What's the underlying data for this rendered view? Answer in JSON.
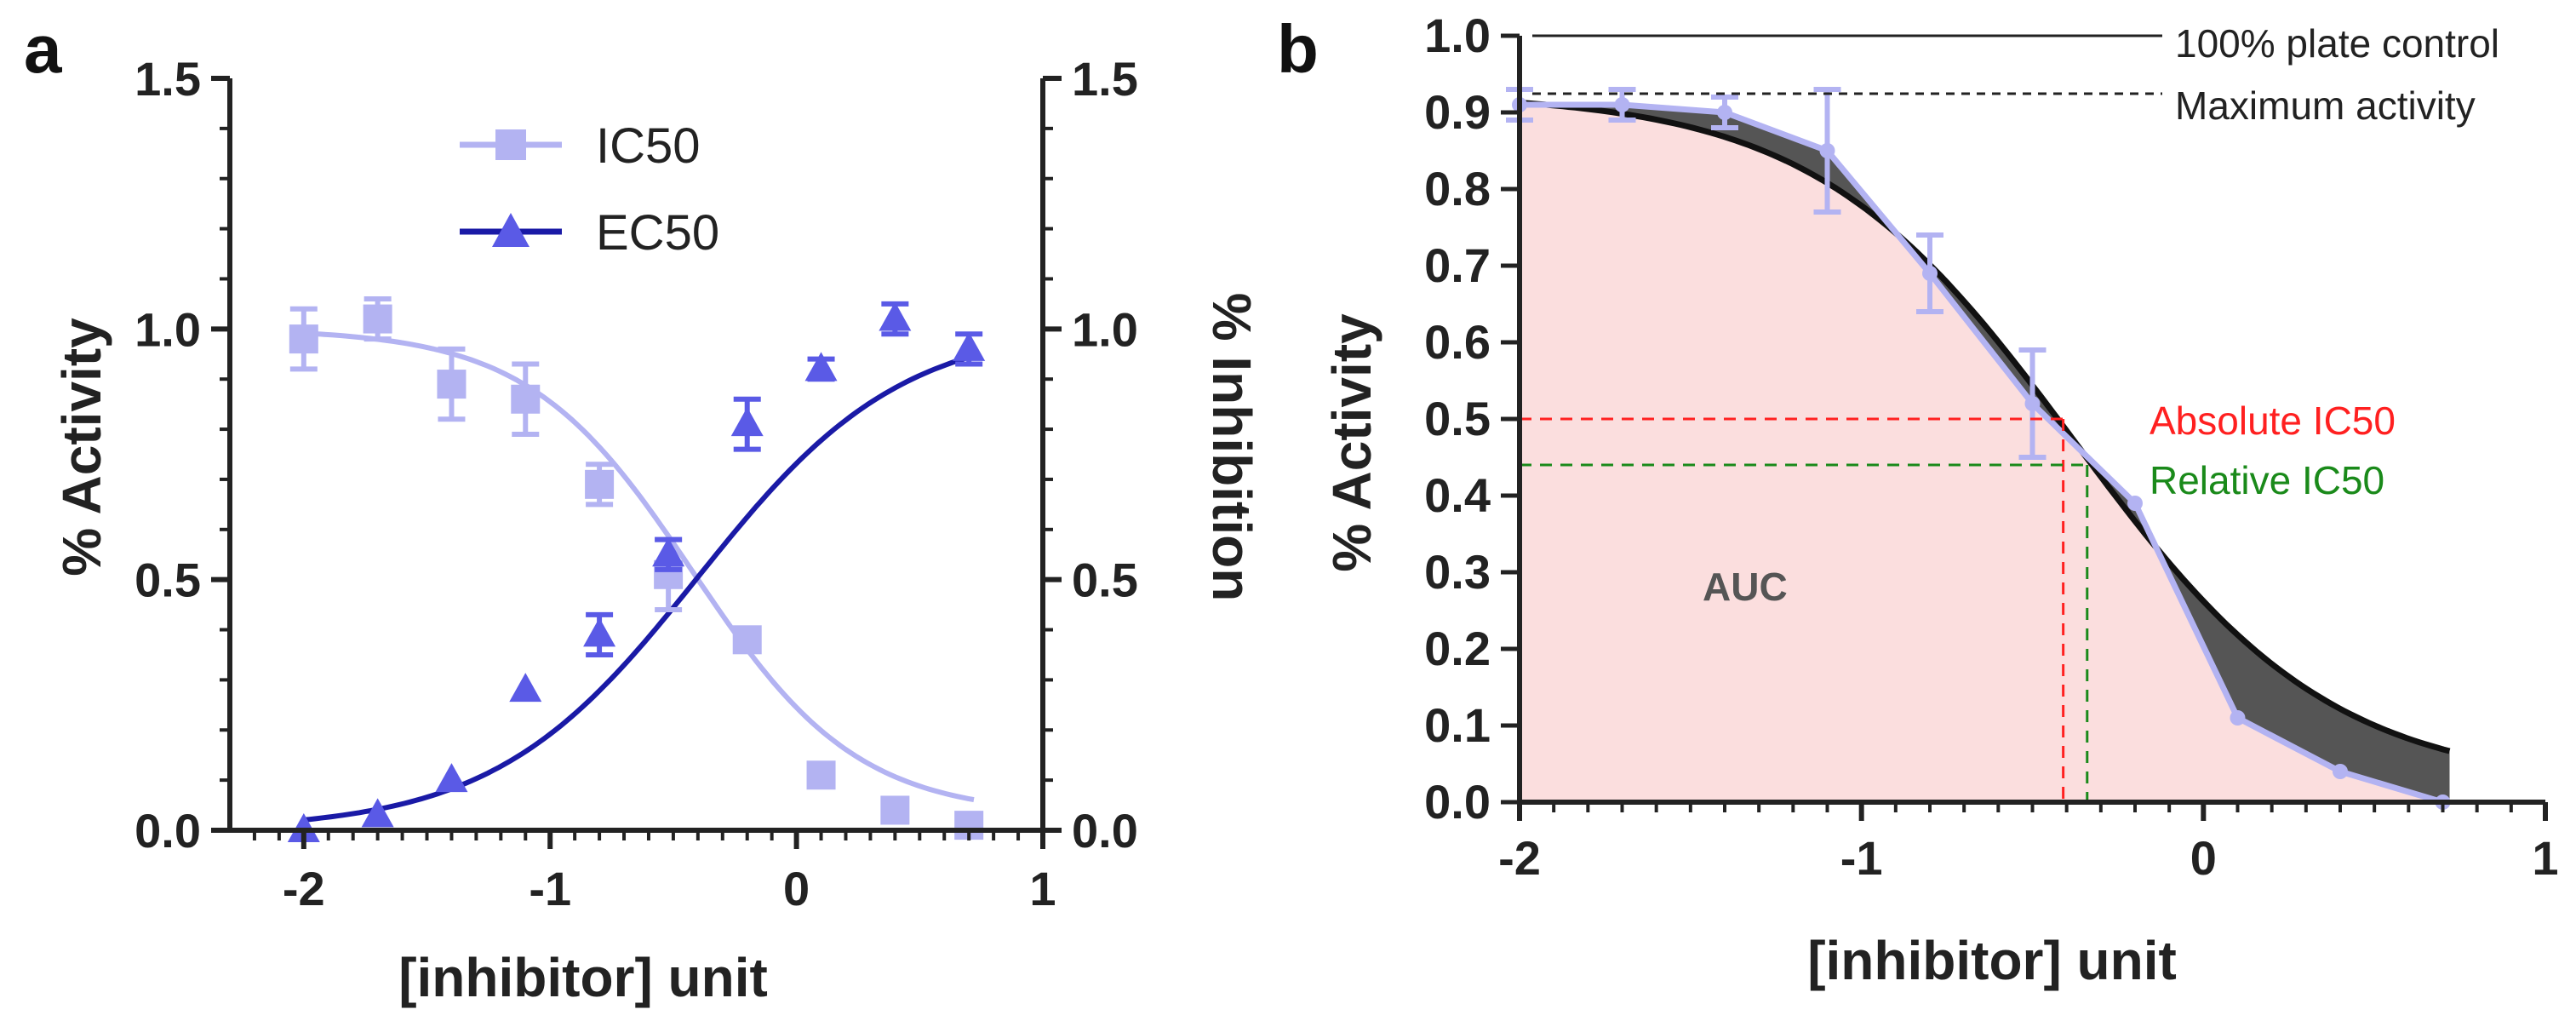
{
  "colors": {
    "ic50": "#b3b3f2",
    "ec50_marker": "#5a5ae6",
    "ec50_curve": "#1a1aa6",
    "auc_fill": "#fbdede",
    "diff_fill": "#555555",
    "absolute": "#ff2020",
    "relative": "#1a8a1a",
    "axis": "#222222"
  },
  "chart_data": [
    {
      "id": "a",
      "panel_label": "a",
      "type": "scatter",
      "xlabel": "[inhibitor] unit",
      "ylabel_left": "% Activity",
      "ylabel_right": "% Inhibition",
      "xlim": [
        -2.3,
        1
      ],
      "ylim": [
        0,
        1.5
      ],
      "xticks": [
        -2,
        -1,
        0,
        1
      ],
      "xtick_labels": [
        "-2",
        "-1",
        "0",
        "1"
      ],
      "yticks": [
        0,
        0.5,
        1,
        1.5
      ],
      "ytick_labels": [
        "0.0",
        "0.5",
        "1.0",
        "1.5"
      ],
      "legend": [
        "IC50",
        "EC50"
      ],
      "series": [
        {
          "name": "IC50",
          "marker": "square",
          "x": [
            -2.0,
            -1.7,
            -1.4,
            -1.1,
            -0.8,
            -0.52,
            -0.2,
            0.1,
            0.4,
            0.7
          ],
          "y": [
            0.98,
            1.02,
            0.89,
            0.86,
            0.69,
            0.51,
            0.38,
            0.11,
            0.04,
            0.01
          ],
          "err": [
            0.06,
            0.04,
            0.07,
            0.07,
            0.04,
            0.07,
            0.0,
            0.0,
            0.0,
            0.0
          ],
          "fit": {
            "top": 1.0,
            "bottom": 0.03,
            "logIC50": -0.42,
            "hill": 1.3
          }
        },
        {
          "name": "EC50",
          "marker": "triangle",
          "x": [
            -2.0,
            -1.7,
            -1.4,
            -1.1,
            -0.8,
            -0.52,
            -0.2,
            0.1,
            0.4,
            0.7
          ],
          "y": [
            0.0,
            0.03,
            0.1,
            0.28,
            0.39,
            0.55,
            0.81,
            0.92,
            1.02,
            0.96
          ],
          "err": [
            0.0,
            0.0,
            0.0,
            0.0,
            0.04,
            0.03,
            0.05,
            0.02,
            0.03,
            0.03
          ],
          "fit": {
            "top": 1.01,
            "bottom": 0.0,
            "logEC50": -0.4,
            "hill": 1.05
          }
        }
      ]
    },
    {
      "id": "b",
      "panel_label": "b",
      "type": "line",
      "xlabel": "[inhibitor] unit",
      "ylabel": "% Activity",
      "xlim": [
        -2,
        1
      ],
      "ylim": [
        0,
        1.0
      ],
      "xticks": [
        -2,
        -1,
        0,
        1
      ],
      "xtick_labels": [
        "-2",
        "-1",
        "0",
        "1"
      ],
      "yticks": [
        0,
        0.1,
        0.2,
        0.3,
        0.4,
        0.5,
        0.6,
        0.7,
        0.8,
        0.9,
        1.0
      ],
      "ytick_labels": [
        "0.0",
        "0.1",
        "0.2",
        "0.3",
        "0.4",
        "0.5",
        "0.6",
        "0.7",
        "0.8",
        "0.9",
        "1.0"
      ],
      "data": {
        "x": [
          -2.0,
          -1.7,
          -1.4,
          -1.1,
          -0.8,
          -0.5,
          -0.2,
          0.1,
          0.4,
          0.7
        ],
        "y": [
          0.91,
          0.91,
          0.9,
          0.85,
          0.69,
          0.52,
          0.39,
          0.11,
          0.04,
          0.0
        ],
        "err": [
          0.02,
          0.02,
          0.02,
          0.08,
          0.05,
          0.07,
          0.0,
          0.0,
          0.0,
          0.0
        ]
      },
      "fit": {
        "top": 0.925,
        "bottom": 0.02,
        "logIC50": -0.38,
        "hill": 1.15
      },
      "reference_lines": [
        {
          "label": "100% plate control",
          "y": 1.0,
          "style": "solid"
        },
        {
          "label": "Maximum activity",
          "y": 0.92,
          "style": "dashed"
        }
      ],
      "annotations": {
        "absolute_ic50": {
          "label": "Absolute IC50",
          "x": -0.41,
          "y": 0.5
        },
        "relative_ic50": {
          "label": "Relative IC50",
          "x": -0.34,
          "y": 0.44
        },
        "auc": {
          "label": "AUC",
          "x": -1.45,
          "y": 0.29
        }
      }
    }
  ]
}
